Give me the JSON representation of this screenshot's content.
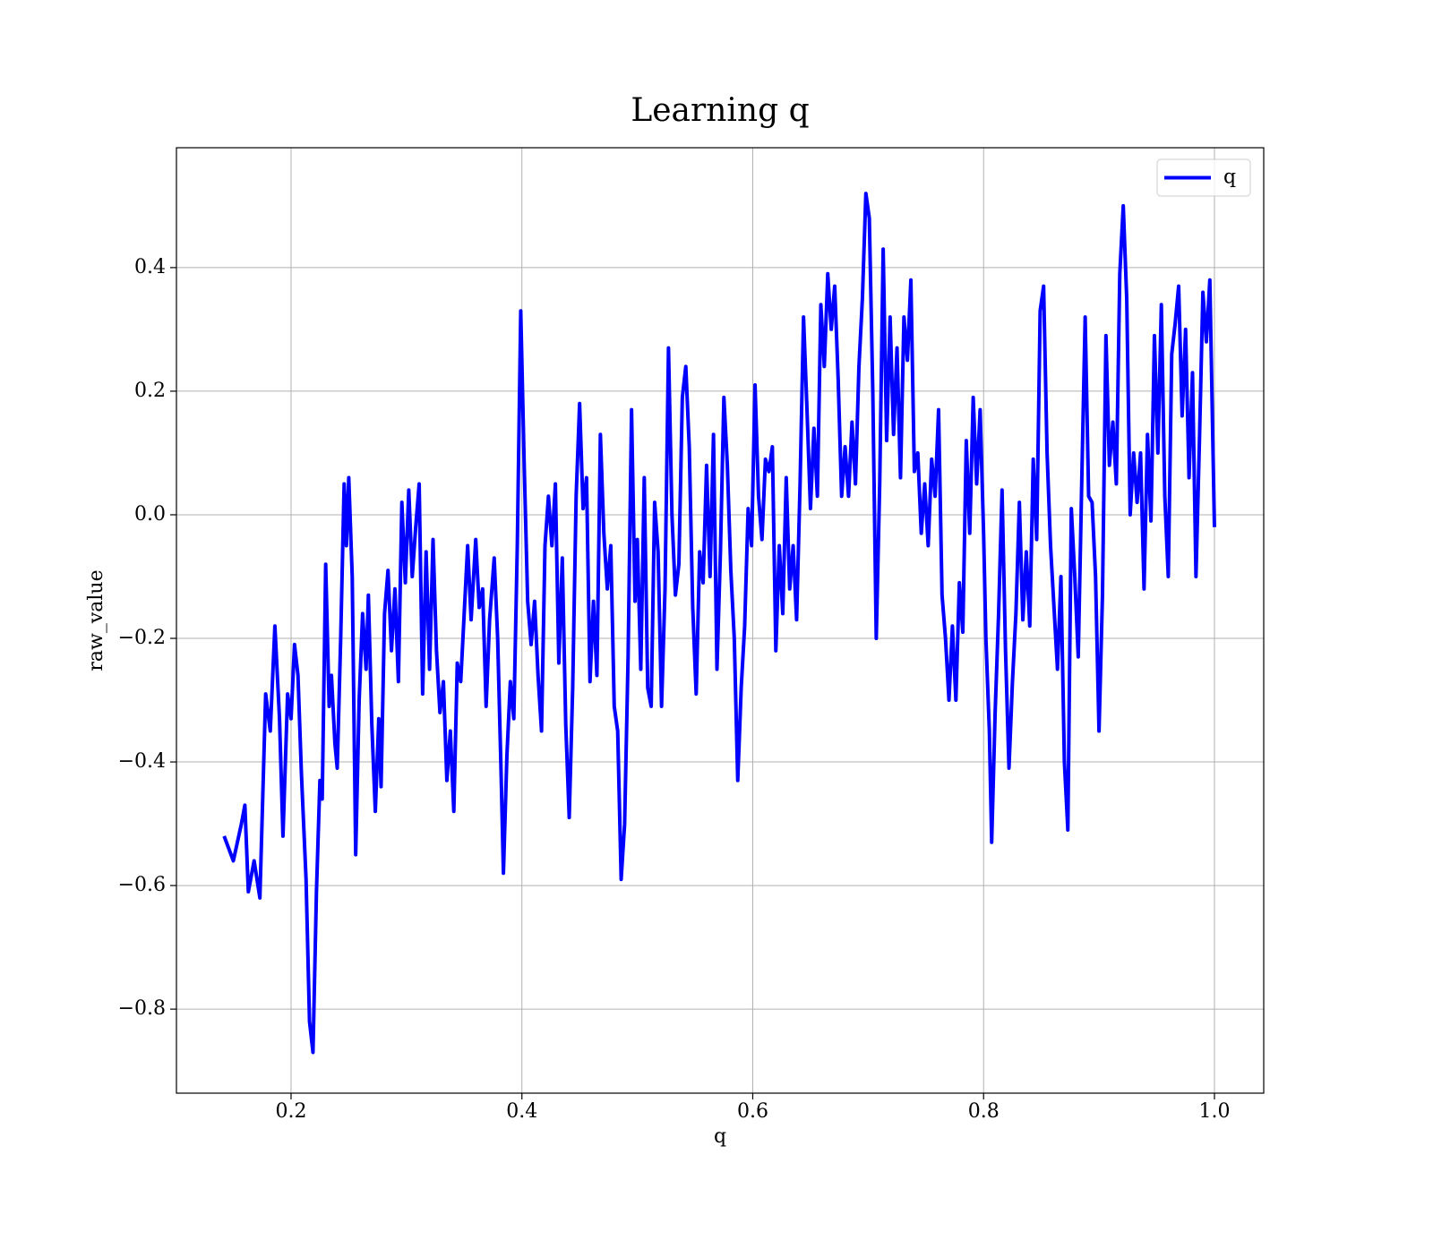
{
  "chart_data": {
    "type": "line",
    "title": "Learning q",
    "x_label": "q",
    "y_label": "raw_value",
    "x": [
      0.142,
      0.15,
      0.157,
      0.16,
      0.163,
      0.168,
      0.173,
      0.178,
      0.182,
      0.186,
      0.19,
      0.193,
      0.197,
      0.2,
      0.203,
      0.206,
      0.209,
      0.213,
      0.216,
      0.219,
      0.222,
      0.225,
      0.227,
      0.23,
      0.233,
      0.235,
      0.238,
      0.24,
      0.243,
      0.246,
      0.248,
      0.25,
      0.253,
      0.256,
      0.259,
      0.262,
      0.265,
      0.267,
      0.27,
      0.273,
      0.276,
      0.278,
      0.281,
      0.284,
      0.287,
      0.29,
      0.293,
      0.296,
      0.299,
      0.302,
      0.305,
      0.308,
      0.311,
      0.314,
      0.317,
      0.32,
      0.323,
      0.326,
      0.329,
      0.332,
      0.335,
      0.338,
      0.341,
      0.344,
      0.347,
      0.35,
      0.353,
      0.356,
      0.36,
      0.363,
      0.366,
      0.369,
      0.372,
      0.376,
      0.379,
      0.382,
      0.384,
      0.387,
      0.39,
      0.393,
      0.396,
      0.399,
      0.402,
      0.405,
      0.408,
      0.411,
      0.414,
      0.417,
      0.42,
      0.423,
      0.426,
      0.429,
      0.432,
      0.435,
      0.438,
      0.441,
      0.444,
      0.447,
      0.45,
      0.453,
      0.456,
      0.459,
      0.462,
      0.465,
      0.468,
      0.471,
      0.474,
      0.477,
      0.48,
      0.483,
      0.486,
      0.489,
      0.492,
      0.495,
      0.498,
      0.5,
      0.503,
      0.506,
      0.509,
      0.512,
      0.515,
      0.518,
      0.521,
      0.524,
      0.527,
      0.53,
      0.533,
      0.536,
      0.539,
      0.542,
      0.545,
      0.548,
      0.551,
      0.554,
      0.557,
      0.56,
      0.563,
      0.566,
      0.569,
      0.572,
      0.575,
      0.578,
      0.581,
      0.584,
      0.587,
      0.59,
      0.593,
      0.596,
      0.599,
      0.602,
      0.605,
      0.608,
      0.611,
      0.614,
      0.617,
      0.62,
      0.623,
      0.626,
      0.629,
      0.632,
      0.635,
      0.638,
      0.641,
      0.644,
      0.647,
      0.65,
      0.653,
      0.656,
      0.659,
      0.662,
      0.665,
      0.668,
      0.671,
      0.674,
      0.677,
      0.68,
      0.683,
      0.686,
      0.689,
      0.692,
      0.695,
      0.698,
      0.701,
      0.704,
      0.707,
      0.71,
      0.713,
      0.716,
      0.719,
      0.722,
      0.725,
      0.728,
      0.731,
      0.734,
      0.737,
      0.74,
      0.743,
      0.746,
      0.749,
      0.752,
      0.755,
      0.758,
      0.761,
      0.764,
      0.767,
      0.77,
      0.773,
      0.776,
      0.779,
      0.782,
      0.785,
      0.788,
      0.791,
      0.794,
      0.797,
      0.8,
      0.802,
      0.805,
      0.807,
      0.81,
      0.813,
      0.816,
      0.819,
      0.822,
      0.825,
      0.828,
      0.831,
      0.834,
      0.837,
      0.84,
      0.843,
      0.846,
      0.849,
      0.852,
      0.855,
      0.858,
      0.861,
      0.864,
      0.867,
      0.87,
      0.873,
      0.876,
      0.879,
      0.882,
      0.885,
      0.888,
      0.891,
      0.894,
      0.897,
      0.9,
      0.903,
      0.906,
      0.909,
      0.912,
      0.915,
      0.918,
      0.921,
      0.924,
      0.927,
      0.93,
      0.933,
      0.936,
      0.939,
      0.942,
      0.945,
      0.948,
      0.951,
      0.954,
      0.957,
      0.96,
      0.963,
      0.966,
      0.969,
      0.972,
      0.975,
      0.978,
      0.981,
      0.984,
      0.987,
      0.99,
      0.993,
      0.996,
      1.0
    ],
    "series": [
      {
        "name": "q",
        "color": "#0000ff",
        "values": [
          -0.52,
          -0.56,
          -0.5,
          -0.47,
          -0.61,
          -0.56,
          -0.62,
          -0.29,
          -0.35,
          -0.18,
          -0.33,
          -0.52,
          -0.29,
          -0.33,
          -0.21,
          -0.26,
          -0.42,
          -0.59,
          -0.82,
          -0.87,
          -0.61,
          -0.43,
          -0.46,
          -0.08,
          -0.31,
          -0.26,
          -0.37,
          -0.41,
          -0.2,
          0.05,
          -0.05,
          0.06,
          -0.1,
          -0.55,
          -0.3,
          -0.16,
          -0.25,
          -0.13,
          -0.34,
          -0.48,
          -0.33,
          -0.44,
          -0.16,
          -0.09,
          -0.22,
          -0.12,
          -0.27,
          0.02,
          -0.11,
          0.04,
          -0.1,
          -0.02,
          0.05,
          -0.29,
          -0.06,
          -0.25,
          -0.04,
          -0.22,
          -0.32,
          -0.27,
          -0.43,
          -0.35,
          -0.48,
          -0.24,
          -0.27,
          -0.16,
          -0.05,
          -0.17,
          -0.04,
          -0.15,
          -0.12,
          -0.31,
          -0.17,
          -0.07,
          -0.2,
          -0.42,
          -0.58,
          -0.39,
          -0.27,
          -0.33,
          -0.05,
          0.33,
          0.08,
          -0.14,
          -0.21,
          -0.14,
          -0.26,
          -0.35,
          -0.05,
          0.03,
          -0.05,
          0.05,
          -0.24,
          -0.07,
          -0.34,
          -0.49,
          -0.28,
          0.03,
          0.18,
          0.01,
          0.06,
          -0.27,
          -0.14,
          -0.26,
          0.13,
          -0.03,
          -0.12,
          -0.05,
          -0.31,
          -0.35,
          -0.59,
          -0.5,
          -0.23,
          0.17,
          -0.14,
          -0.04,
          -0.25,
          0.06,
          -0.28,
          -0.31,
          0.02,
          -0.06,
          -0.31,
          -0.12,
          0.27,
          0.0,
          -0.13,
          -0.08,
          0.19,
          0.24,
          0.11,
          -0.15,
          -0.29,
          -0.06,
          -0.11,
          0.08,
          -0.1,
          0.13,
          -0.25,
          -0.06,
          0.19,
          0.08,
          -0.09,
          -0.2,
          -0.43,
          -0.28,
          -0.18,
          0.01,
          -0.05,
          0.21,
          0.03,
          -0.04,
          0.09,
          0.07,
          0.11,
          -0.22,
          -0.05,
          -0.16,
          0.06,
          -0.12,
          -0.05,
          -0.17,
          0.05,
          0.32,
          0.17,
          0.01,
          0.14,
          0.03,
          0.34,
          0.24,
          0.39,
          0.3,
          0.37,
          0.22,
          0.03,
          0.11,
          0.03,
          0.15,
          0.05,
          0.24,
          0.35,
          0.52,
          0.48,
          0.2,
          -0.2,
          0.05,
          0.43,
          0.12,
          0.32,
          0.13,
          0.27,
          0.06,
          0.32,
          0.25,
          0.38,
          0.07,
          0.1,
          -0.03,
          0.05,
          -0.05,
          0.09,
          0.03,
          0.17,
          -0.13,
          -0.2,
          -0.3,
          -0.18,
          -0.3,
          -0.11,
          -0.19,
          0.12,
          -0.03,
          0.19,
          0.05,
          0.17,
          -0.03,
          -0.2,
          -0.35,
          -0.53,
          -0.32,
          -0.16,
          0.04,
          -0.22,
          -0.41,
          -0.27,
          -0.16,
          0.02,
          -0.17,
          -0.06,
          -0.18,
          0.09,
          -0.04,
          0.33,
          0.37,
          0.1,
          -0.05,
          -0.15,
          -0.25,
          -0.1,
          -0.4,
          -0.51,
          0.01,
          -0.1,
          -0.23,
          0.05,
          0.32,
          0.03,
          0.02,
          -0.1,
          -0.35,
          -0.13,
          0.29,
          0.08,
          0.15,
          0.05,
          0.39,
          0.5,
          0.35,
          0.0,
          0.1,
          0.02,
          0.1,
          -0.12,
          0.13,
          -0.01,
          0.29,
          0.1,
          0.34,
          0.03,
          -0.1,
          0.26,
          0.31,
          0.37,
          0.16,
          0.3,
          0.06,
          0.23,
          -0.1,
          0.12,
          0.36,
          0.28,
          0.38,
          -0.02
        ]
      }
    ],
    "xlim": [
      0.1007,
      1.0427
    ],
    "ylim": [
      -0.936,
      0.594
    ],
    "xticks": [
      0.2,
      0.4,
      0.6,
      0.8,
      {
        "value": 1,
        "label": "1.0"
      }
    ],
    "yticks": [
      {
        "value": -0.8,
        "label": "−0.8"
      },
      {
        "value": -0.6,
        "label": "−0.6"
      },
      {
        "value": -0.4,
        "label": "−0.4"
      },
      {
        "value": -0.2,
        "label": "−0.2"
      },
      {
        "value": 0,
        "label": "0.0"
      },
      0.2,
      0.4
    ],
    "grid": true,
    "legend": "upper-right"
  }
}
